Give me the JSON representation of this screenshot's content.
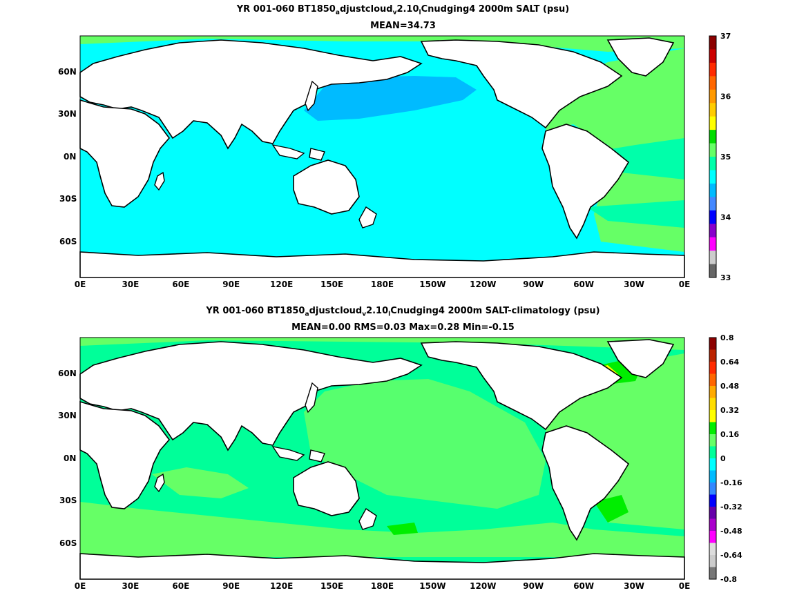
{
  "panel1": {
    "title_pre": "YR 001-060 BT1850",
    "title_sub1": "a",
    "title_mid1": "djustcloud",
    "title_sub2": "v",
    "title_mid2": "2.10",
    "title_sub3": "l",
    "title_post": "Cnudging4 2000m SALT (psu)",
    "stats": "MEAN=34.73",
    "colorbar_labels": [
      "37",
      "36",
      "35",
      "34",
      "33"
    ],
    "colorbar_colors": [
      "#8b0000",
      "#cc0000",
      "#ff2a00",
      "#ff6600",
      "#ff9900",
      "#ffcc00",
      "#ffff00",
      "#00dd00",
      "#66ff66",
      "#00ffaa",
      "#00ffff",
      "#00bbff",
      "#4488ff",
      "#0000ff",
      "#8800cc",
      "#ff00ff",
      "#cccccc",
      "#666666"
    ]
  },
  "panel2": {
    "title_pre": "YR 001-060 BT1850",
    "title_sub1": "a",
    "title_mid1": "djustcloud",
    "title_sub2": "v",
    "title_mid2": "2.10",
    "title_sub3": "l",
    "title_post": "Cnudging4 2000m SALT-climatology (psu)",
    "stats": "MEAN=0.00   RMS=0.03   Max=0.28   Min=-0.15",
    "colorbar_labels": [
      "0.8",
      "0.64",
      "0.48",
      "0.32",
      "0.16",
      "0",
      "-0.16",
      "-0.32",
      "-0.48",
      "-0.64",
      "-0.8"
    ],
    "colorbar_colors": [
      "#8b0000",
      "#bb2200",
      "#ff2a00",
      "#ff6600",
      "#ffaa00",
      "#ffdd00",
      "#ffff00",
      "#00ee00",
      "#66ff66",
      "#00ff99",
      "#00ffff",
      "#00bbff",
      "#3388ff",
      "#0000ff",
      "#6600aa",
      "#aa00cc",
      "#ff00ff",
      "#dddddd",
      "#cccccc",
      "#777777"
    ]
  },
  "axes": {
    "x_ticks": [
      "0E",
      "30E",
      "60E",
      "90E",
      "120E",
      "150E",
      "180E",
      "150W",
      "120W",
      "90W",
      "60W",
      "30W",
      "0E"
    ],
    "y_ticks": [
      "60N",
      "30N",
      "0N",
      "30S",
      "60S"
    ]
  }
}
